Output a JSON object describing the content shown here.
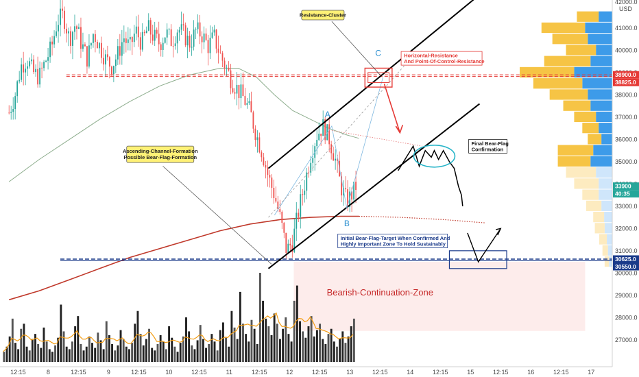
{
  "chart_data": {
    "type": "candlestick",
    "y_axis": {
      "unit": "USD",
      "range": [
        26500,
        42200
      ],
      "ticks": [
        27000,
        28000,
        29000,
        30000,
        31000,
        32000,
        33000,
        34000,
        35000,
        36000,
        37000,
        38000,
        39000,
        40000,
        41000
      ],
      "tick_labels": [
        "27000.0",
        "28000.0",
        "29000.0",
        "30000.0",
        "31000.0",
        "32000.0",
        "33000.0",
        "34000.0",
        "35000.0",
        "36000.0",
        "37000.0",
        "38000.0",
        "39000.0",
        "40000.0",
        "41000.0"
      ],
      "top_cut_label": "42000.0"
    },
    "x_axis": {
      "labels": [
        {
          "text": "12:15",
          "day": 7.15
        },
        {
          "text": "8",
          "day": 7.65
        },
        {
          "text": "12:15",
          "day": 8.15
        },
        {
          "text": "9",
          "day": 8.65
        },
        {
          "text": "12:15",
          "day": 9.15
        },
        {
          "text": "10",
          "day": 9.65
        },
        {
          "text": "12:15",
          "day": 10.15
        },
        {
          "text": "11",
          "day": 10.65
        },
        {
          "text": "12:15",
          "day": 11.15
        },
        {
          "text": "12",
          "day": 11.65
        },
        {
          "text": "12:15",
          "day": 12.15
        },
        {
          "text": "13",
          "day": 12.65
        },
        {
          "text": "12:15",
          "day": 13.15
        },
        {
          "text": "14",
          "day": 13.65
        },
        {
          "text": "12:15",
          "day": 14.15
        },
        {
          "text": "15",
          "day": 14.65
        },
        {
          "text": "12:15",
          "day": 15.15
        },
        {
          "text": "16",
          "day": 15.65
        },
        {
          "text": "12:15",
          "day": 16.15
        },
        {
          "text": "17",
          "day": 16.65
        }
      ]
    },
    "price_path": [
      [
        7.0,
        37200
      ],
      [
        7.1,
        38000
      ],
      [
        7.2,
        39300
      ],
      [
        7.3,
        39600
      ],
      [
        7.4,
        39000
      ],
      [
        7.5,
        38800
      ],
      [
        7.6,
        39500
      ],
      [
        7.7,
        40100
      ],
      [
        7.8,
        41300
      ],
      [
        7.9,
        41600
      ],
      [
        8.0,
        40500
      ],
      [
        8.1,
        41200
      ],
      [
        8.2,
        40300
      ],
      [
        8.3,
        39600
      ],
      [
        8.4,
        40800
      ],
      [
        8.5,
        40200
      ],
      [
        8.6,
        39600
      ],
      [
        8.7,
        39300
      ],
      [
        8.8,
        39800
      ],
      [
        8.9,
        40600
      ],
      [
        9.0,
        40100
      ],
      [
        9.1,
        40900
      ],
      [
        9.2,
        40300
      ],
      [
        9.3,
        41000
      ],
      [
        9.4,
        40600
      ],
      [
        9.5,
        40300
      ],
      [
        9.6,
        40800
      ],
      [
        9.7,
        40400
      ],
      [
        9.8,
        41000
      ],
      [
        9.9,
        40700
      ],
      [
        10.0,
        40300
      ],
      [
        10.1,
        40900
      ],
      [
        10.2,
        40700
      ],
      [
        10.3,
        40200
      ],
      [
        10.4,
        40600
      ],
      [
        10.5,
        39800
      ],
      [
        10.6,
        39200
      ],
      [
        10.7,
        38600
      ],
      [
        10.8,
        38200
      ],
      [
        10.9,
        37800
      ],
      [
        11.0,
        37200
      ],
      [
        11.1,
        36200
      ],
      [
        11.2,
        35400
      ],
      [
        11.3,
        34300
      ],
      [
        11.4,
        33500
      ],
      [
        11.5,
        32400
      ],
      [
        11.6,
        31000
      ],
      [
        11.7,
        31400
      ],
      [
        11.8,
        32800
      ],
      [
        11.9,
        34000
      ],
      [
        12.0,
        35300
      ],
      [
        12.1,
        36200
      ],
      [
        12.2,
        36600
      ],
      [
        12.3,
        36100
      ],
      [
        12.4,
        35200
      ],
      [
        12.5,
        33900
      ],
      [
        12.6,
        33200
      ],
      [
        12.7,
        33600
      ],
      [
        12.75,
        33900
      ]
    ],
    "series": [
      {
        "name": "",
        "kind": "moving-average",
        "color": "#2f6a2f",
        "points": [
          [
            7.0,
            34100
          ],
          [
            7.5,
            35100
          ],
          [
            8.0,
            36000
          ],
          [
            8.5,
            36900
          ],
          [
            9.0,
            37700
          ],
          [
            9.5,
            38400
          ],
          [
            10.0,
            38900
          ],
          [
            10.5,
            39200
          ],
          [
            10.8,
            39200
          ],
          [
            11.1,
            38800
          ],
          [
            11.4,
            38000
          ],
          [
            11.7,
            37300
          ],
          [
            12.0,
            36900
          ],
          [
            12.3,
            36500
          ],
          [
            12.6,
            36200
          ],
          [
            12.8,
            36050
          ]
        ]
      },
      {
        "name": "",
        "kind": "moving-average",
        "color": "#c0392b",
        "points": [
          [
            7.0,
            28800
          ],
          [
            7.5,
            29200
          ],
          [
            8.0,
            29700
          ],
          [
            8.5,
            30200
          ],
          [
            9.0,
            30700
          ],
          [
            9.5,
            31100
          ],
          [
            10.0,
            31500
          ],
          [
            10.5,
            31900
          ],
          [
            11.0,
            32200
          ],
          [
            11.5,
            32400
          ],
          [
            12.0,
            32500
          ],
          [
            12.5,
            32550
          ],
          [
            12.8,
            32550
          ]
        ],
        "projection": [
          [
            12.8,
            32550
          ],
          [
            13.5,
            32500
          ],
          [
            14.2,
            32400
          ],
          [
            14.9,
            32250
          ]
        ]
      }
    ],
    "volume": [
      8,
      12,
      20,
      34,
      15,
      10,
      26,
      30,
      12,
      9,
      18,
      22,
      14,
      11,
      27,
      16,
      10,
      8,
      13,
      19,
      45,
      24,
      12,
      10,
      16,
      28,
      36,
      14,
      9,
      12,
      20,
      15,
      11,
      23,
      17,
      10,
      32,
      21,
      14,
      9,
      13,
      25,
      18,
      12,
      10,
      15,
      30,
      40,
      22,
      13,
      18,
      26,
      11,
      9,
      14,
      21,
      16,
      10,
      28,
      19,
      12,
      8,
      15,
      20,
      35,
      24,
      13,
      10,
      17,
      29,
      18,
      11,
      14,
      22,
      16,
      9,
      25,
      31,
      19,
      12,
      40,
      27,
      18,
      55,
      30,
      22,
      16,
      33,
      26,
      14,
      70,
      48,
      34,
      28,
      21,
      38,
      30,
      18,
      26,
      35,
      22,
      16,
      48,
      60,
      32,
      24,
      19,
      28,
      36,
      20,
      25,
      30,
      18,
      14,
      22,
      26,
      16,
      12,
      18,
      24,
      15,
      20,
      28,
      34
    ],
    "volume_profile": [
      {
        "price": 41500,
        "up": 40,
        "down": 25
      },
      {
        "price": 41000,
        "up": 80,
        "down": 50
      },
      {
        "price": 40500,
        "up": 65,
        "down": 45
      },
      {
        "price": 40000,
        "up": 55,
        "down": 30
      },
      {
        "price": 39500,
        "up": 85,
        "down": 40
      },
      {
        "price": 39000,
        "up": 100,
        "down": 70
      },
      {
        "price": 38500,
        "up": 90,
        "down": 55
      },
      {
        "price": 38000,
        "up": 70,
        "down": 45
      },
      {
        "price": 37500,
        "up": 50,
        "down": 40
      },
      {
        "price": 37000,
        "up": 40,
        "down": 30
      },
      {
        "price": 36500,
        "up": 30,
        "down": 25
      },
      {
        "price": 36000,
        "up": 25,
        "down": 20
      },
      {
        "price": 35500,
        "up": 65,
        "down": 35
      },
      {
        "price": 35000,
        "up": 60,
        "down": 40
      },
      {
        "price": 34500,
        "up": 55,
        "down": 30
      },
      {
        "price": 34000,
        "up": 45,
        "down": 25
      },
      {
        "price": 33500,
        "up": 30,
        "down": 25
      },
      {
        "price": 33000,
        "up": 28,
        "down": 20
      },
      {
        "price": 32500,
        "up": 20,
        "down": 15
      },
      {
        "price": 32000,
        "up": 18,
        "down": 14
      },
      {
        "price": 31500,
        "up": 14,
        "down": 10
      },
      {
        "price": 31000,
        "up": 10,
        "down": 8
      },
      {
        "price": 30500,
        "up": 8,
        "down": 6
      }
    ],
    "levels": {
      "resistance": 38825,
      "point_of_control": 38900,
      "support_top": 30625,
      "support_bottom": 30550
    },
    "channel": {
      "lower": [
        [
          11.3,
          30200
        ],
        [
          14.8,
          37600
        ]
      ],
      "upper": [
        [
          11.3,
          34700
        ],
        [
          14.8,
          42500
        ]
      ]
    },
    "price_tags": [
      {
        "label": "42000.0",
        "value": 42000,
        "bg": "#ffffff",
        "fg": "#555555"
      },
      {
        "label": "38900.0",
        "value": 38900,
        "bg": "#e53935",
        "fg": "#ffffff"
      },
      {
        "label": "38825.0",
        "value": 38825,
        "bg": "#e53935",
        "fg": "#ffffff"
      },
      {
        "label": "33900",
        "value": 33900,
        "bg": "#26a69a",
        "fg": "#ffffff"
      },
      {
        "label": "40:35",
        "value": 33700,
        "bg": "#26a69a",
        "fg": "#ffffff"
      },
      {
        "label": "30625.0",
        "value": 30625,
        "bg": "#1a3a8a",
        "fg": "#ffffff"
      },
      {
        "label": "30550.0",
        "value": 30550,
        "bg": "#1a3a8a",
        "fg": "#ffffff"
      }
    ],
    "annotations": {
      "resistance_cluster": "Resistance-Cluster",
      "horizontal_resistance_1": "Horizontal-Resistance",
      "horizontal_resistance_2": "And Point-Of-Control-Resistance",
      "channel_note_1": "Ascending-Channel-Formation",
      "channel_note_2": "Possible Bear-Flag-Formation",
      "final_flag_1": "Final Bear-Flag",
      "final_flag_2": "Confirmation",
      "target_1": "Initial Bear-Flag-Target When Confirmed And",
      "target_2": "Highly Important Zone To Hold Sustainably",
      "bearish_zone": "Bearish-Continuation-Zone",
      "wave_a": "A",
      "wave_b": "B",
      "wave_c": "C"
    }
  }
}
